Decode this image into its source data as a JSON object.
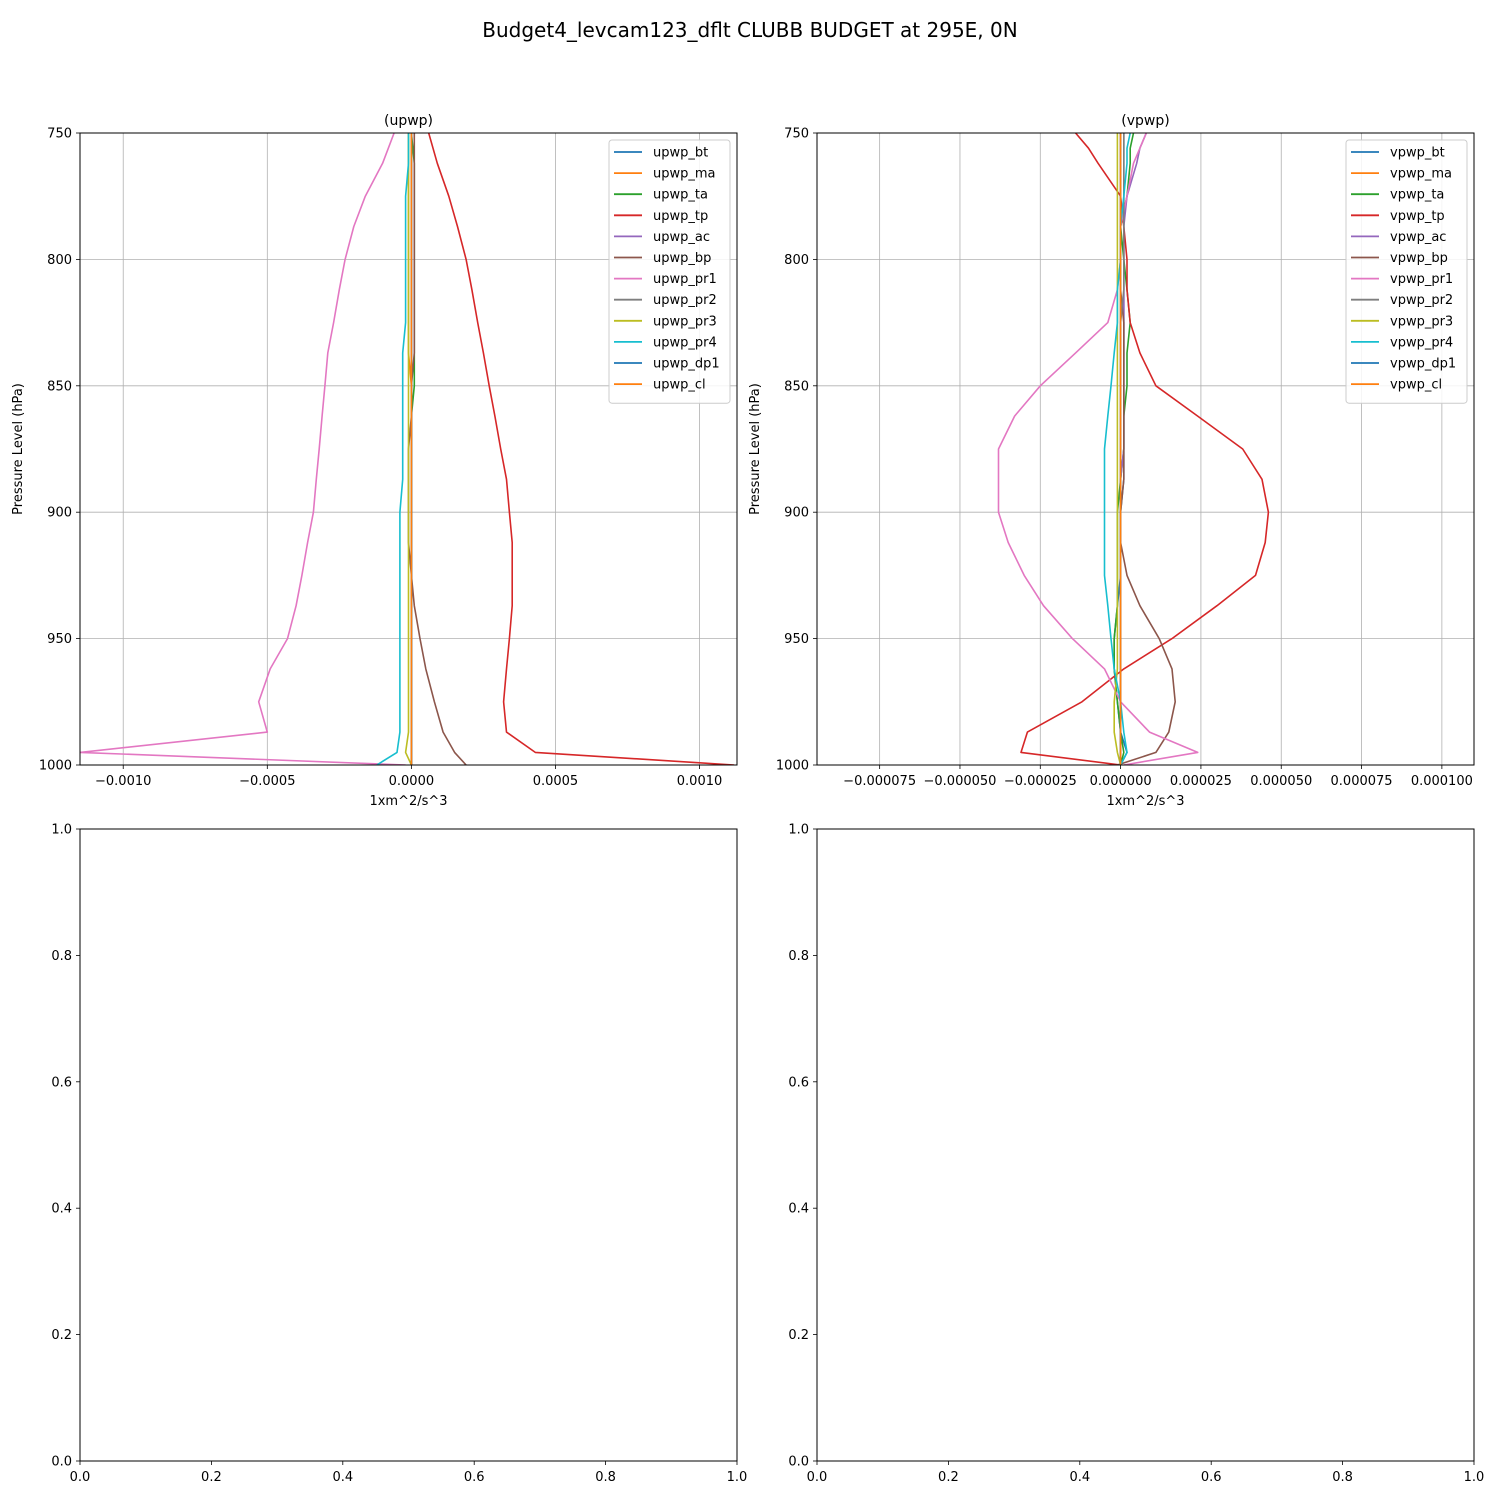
{
  "figure": {
    "suptitle": "Budget4_levcam123_dflt CLUBB BUDGET at 295E, 0N"
  },
  "chart_data": [
    {
      "type": "line",
      "title": "(upwp)",
      "xlabel": "1xm^2/s^3",
      "ylabel": "Pressure Level (hPa)",
      "xlim": [
        -0.00115,
        0.00113
      ],
      "ylim": [
        1000,
        750
      ],
      "yscale": "inverted",
      "xticks": [
        -0.001,
        -0.0005,
        0.0,
        0.0005,
        0.001
      ],
      "xtick_labels": [
        "−0.0010",
        "−0.0005",
        "0.0000",
        "0.0005",
        "0.0010"
      ],
      "yticks": [
        750,
        800,
        850,
        900,
        950,
        1000
      ],
      "ytick_labels": [
        "750",
        "800",
        "850",
        "900",
        "950",
        "1000"
      ],
      "grid": true,
      "legend": "upper right",
      "y": [
        750,
        762,
        775,
        787,
        800,
        812,
        825,
        837,
        850,
        862,
        875,
        887,
        900,
        912,
        925,
        937,
        950,
        962,
        975,
        987,
        995,
        1000
      ],
      "series": [
        {
          "name": "upwp_bt",
          "color": "#1f77b4",
          "values": [
            0.0,
            0.0,
            0.0,
            0.0,
            0.0,
            0.0,
            0.0,
            0.0,
            0.0,
            0.0,
            0.0,
            0.0,
            0.0,
            0.0,
            0.0,
            0.0,
            0.0,
            0.0,
            0.0,
            0.0,
            0.0,
            0.0
          ]
        },
        {
          "name": "upwp_ma",
          "color": "#ff7f0e",
          "values": [
            -1e-05,
            -1e-05,
            -1e-05,
            -1e-05,
            -1e-05,
            -1e-05,
            -1e-05,
            -1e-05,
            0.0,
            0.0,
            0.0,
            0.0,
            0.0,
            0.0,
            0.0,
            0.0,
            0.0,
            0.0,
            0.0,
            0.0,
            0.0,
            0.0
          ]
        },
        {
          "name": "upwp_ta",
          "color": "#2ca02c",
          "values": [
            0.0,
            1e-05,
            1e-05,
            1e-05,
            1e-05,
            1e-05,
            1e-05,
            1e-05,
            1e-05,
            0.0,
            0.0,
            0.0,
            0.0,
            0.0,
            0.0,
            0.0,
            0.0,
            0.0,
            0.0,
            0.0,
            0.0,
            0.0
          ]
        },
        {
          "name": "upwp_tp",
          "color": "#d62728",
          "values": [
            6e-05,
            9e-05,
            0.00013,
            0.00016,
            0.00019,
            0.00021,
            0.00023,
            0.00025,
            0.00027,
            0.00029,
            0.00031,
            0.00033,
            0.00034,
            0.00035,
            0.00035,
            0.00035,
            0.00034,
            0.00033,
            0.00032,
            0.00033,
            0.00043,
            0.00112
          ]
        },
        {
          "name": "upwp_ac",
          "color": "#9467bd",
          "values": [
            0.0,
            0.0,
            0.0,
            0.0,
            0.0,
            0.0,
            0.0,
            0.0,
            0.0,
            0.0,
            0.0,
            0.0,
            0.0,
            0.0,
            0.0,
            0.0,
            0.0,
            0.0,
            0.0,
            0.0,
            0.0,
            0.0
          ]
        },
        {
          "name": "upwp_bp",
          "color": "#8c564b",
          "values": [
            1e-05,
            1e-05,
            1e-05,
            1e-05,
            1e-05,
            1e-05,
            1e-05,
            1e-05,
            0.0,
            0.0,
            -1e-05,
            -1e-05,
            -1e-05,
            -1e-05,
            0.0,
            1e-05,
            3e-05,
            5e-05,
            8e-05,
            0.00011,
            0.00015,
            0.00019
          ]
        },
        {
          "name": "upwp_pr1",
          "color": "#e377c2",
          "values": [
            -6e-05,
            -0.0001,
            -0.00016,
            -0.0002,
            -0.00023,
            -0.00025,
            -0.00027,
            -0.00029,
            -0.0003,
            -0.00031,
            -0.00032,
            -0.00033,
            -0.00034,
            -0.00036,
            -0.00038,
            -0.0004,
            -0.00043,
            -0.00049,
            -0.00053,
            -0.0005,
            -0.00115,
            -2e-05
          ]
        },
        {
          "name": "upwp_pr2",
          "color": "#7f7f7f",
          "values": [
            0.0,
            0.0,
            0.0,
            0.0,
            0.0,
            0.0,
            0.0,
            0.0,
            0.0,
            0.0,
            0.0,
            0.0,
            0.0,
            0.0,
            0.0,
            0.0,
            0.0,
            0.0,
            0.0,
            0.0,
            0.0,
            0.0
          ]
        },
        {
          "name": "upwp_pr3",
          "color": "#bcbd22",
          "values": [
            -1e-05,
            -1e-05,
            -1e-05,
            -1e-05,
            -1e-05,
            -1e-05,
            -1e-05,
            -1e-05,
            -1e-05,
            -1e-05,
            -1e-05,
            -1e-05,
            -1e-05,
            -1e-05,
            -1e-05,
            -1e-05,
            -1e-05,
            -1e-05,
            -1e-05,
            -1e-05,
            -2e-05,
            0.0
          ]
        },
        {
          "name": "upwp_pr4",
          "color": "#17becf",
          "values": [
            -1e-05,
            -1e-05,
            -2e-05,
            -2e-05,
            -2e-05,
            -2e-05,
            -2e-05,
            -3e-05,
            -3e-05,
            -3e-05,
            -3e-05,
            -3e-05,
            -4e-05,
            -4e-05,
            -4e-05,
            -4e-05,
            -4e-05,
            -4e-05,
            -4e-05,
            -4e-05,
            -5e-05,
            -0.00012
          ]
        },
        {
          "name": "upwp_dp1",
          "color": "#1f77b4",
          "values": [
            0.0,
            0.0,
            0.0,
            0.0,
            0.0,
            0.0,
            0.0,
            0.0,
            0.0,
            0.0,
            0.0,
            0.0,
            0.0,
            0.0,
            0.0,
            0.0,
            0.0,
            0.0,
            0.0,
            0.0,
            0.0,
            0.0
          ]
        },
        {
          "name": "upwp_cl",
          "color": "#ff7f0e",
          "values": [
            0.0,
            0.0,
            0.0,
            0.0,
            0.0,
            0.0,
            0.0,
            0.0,
            0.0,
            0.0,
            0.0,
            0.0,
            0.0,
            0.0,
            0.0,
            0.0,
            0.0,
            0.0,
            0.0,
            0.0,
            0.0,
            0.0
          ]
        }
      ]
    },
    {
      "type": "line",
      "title": "(vpwp)",
      "xlabel": "1xm^2/s^3",
      "ylabel": "Pressure Level (hPa)",
      "xlim": [
        -9.45e-05,
        0.00011
      ],
      "ylim": [
        1000,
        750
      ],
      "yscale": "inverted",
      "xticks": [
        -7.5e-05,
        -5e-05,
        -2.5e-05,
        0.0,
        2.5e-05,
        5e-05,
        7.5e-05,
        0.0001
      ],
      "xtick_labels": [
        "−0.000075",
        "−0.000050",
        "−0.000025",
        "0.000000",
        "0.000025",
        "0.000050",
        "0.000075",
        "0.000100"
      ],
      "yticks": [
        750,
        800,
        850,
        900,
        950,
        1000
      ],
      "ytick_labels": [
        "750",
        "800",
        "850",
        "900",
        "950",
        "1000"
      ],
      "grid": true,
      "legend": "upper right",
      "y": [
        750,
        756,
        762,
        775,
        787,
        800,
        812,
        825,
        837,
        850,
        862,
        875,
        887,
        900,
        912,
        925,
        937,
        950,
        962,
        975,
        987,
        995,
        1000
      ],
      "series": [
        {
          "name": "vpwp_bt",
          "color": "#1f77b4",
          "values": [
            1e-06,
            1e-06,
            1e-06,
            1e-06,
            1e-06,
            1e-06,
            1e-06,
            1e-06,
            1e-06,
            1e-06,
            1e-06,
            1e-06,
            1e-06,
            0.0,
            0.0,
            0.0,
            -1e-06,
            -2e-06,
            -2e-06,
            -1e-06,
            0.0,
            2e-06,
            0.0
          ]
        },
        {
          "name": "vpwp_ma",
          "color": "#ff7f0e",
          "values": [
            0.0,
            0.0,
            0.0,
            0.0,
            0.0,
            0.0,
            0.0,
            0.0,
            0.0,
            0.0,
            0.0,
            0.0,
            0.0,
            0.0,
            0.0,
            0.0,
            0.0,
            0.0,
            0.0,
            0.0,
            0.0,
            0.0,
            0.0
          ]
        },
        {
          "name": "vpwp_ta",
          "color": "#2ca02c",
          "values": [
            4e-06,
            3e-06,
            3e-06,
            2e-06,
            0.0,
            1e-06,
            2e-06,
            3e-06,
            2e-06,
            2e-06,
            1e-06,
            1e-06,
            0.0,
            -1e-06,
            -1e-06,
            -1e-06,
            -1e-06,
            -2e-06,
            -2e-06,
            -1e-06,
            0.0,
            1e-06,
            0.0
          ]
        },
        {
          "name": "vpwp_tp",
          "color": "#d62728",
          "values": [
            -1.4e-05,
            -1e-05,
            -7e-06,
            0.0,
            1e-06,
            2e-06,
            2e-06,
            3e-06,
            6e-06,
            1.1e-05,
            2.4e-05,
            3.8e-05,
            4.4e-05,
            4.6e-05,
            4.5e-05,
            4.2e-05,
            3e-05,
            1.6e-05,
            1e-06,
            -1.2e-05,
            -2.9e-05,
            -3.1e-05,
            0.0
          ]
        },
        {
          "name": "vpwp_ac",
          "color": "#9467bd",
          "values": [
            8e-06,
            6e-06,
            5e-06,
            2e-06,
            1e-06,
            1e-06,
            1e-06,
            1e-06,
            1e-06,
            1e-06,
            1e-06,
            1e-06,
            0.0,
            0.0,
            0.0,
            0.0,
            0.0,
            0.0,
            0.0,
            0.0,
            0.0,
            0.0,
            0.0
          ]
        },
        {
          "name": "vpwp_bp",
          "color": "#8c564b",
          "values": [
            0.0,
            0.0,
            0.0,
            0.0,
            0.0,
            0.0,
            0.0,
            1e-06,
            1e-06,
            1e-06,
            1e-06,
            1e-06,
            1e-06,
            0.0,
            0.0,
            2e-06,
            6e-06,
            1.2e-05,
            1.6e-05,
            1.7e-05,
            1.5e-05,
            1.1e-05,
            -1e-06
          ]
        },
        {
          "name": "vpwp_pr1",
          "color": "#e377c2",
          "values": [
            8e-06,
            6e-06,
            4e-06,
            2e-06,
            0.0,
            0.0,
            -1e-06,
            -4e-06,
            -1.4e-05,
            -2.5e-05,
            -3.3e-05,
            -3.8e-05,
            -3.8e-05,
            -3.8e-05,
            -3.5e-05,
            -3e-05,
            -2.4e-05,
            -1.5e-05,
            -5e-06,
            0.0,
            9e-06,
            2.4e-05,
            1e-06
          ]
        },
        {
          "name": "vpwp_pr2",
          "color": "#7f7f7f",
          "values": [
            1e-06,
            1e-06,
            1e-06,
            1e-06,
            1e-06,
            1e-06,
            1e-06,
            0.0,
            0.0,
            0.0,
            0.0,
            0.0,
            0.0,
            0.0,
            0.0,
            0.0,
            0.0,
            0.0,
            0.0,
            0.0,
            0.0,
            0.0,
            0.0
          ]
        },
        {
          "name": "vpwp_pr3",
          "color": "#bcbd22",
          "values": [
            -1e-06,
            -1e-06,
            -1e-06,
            -1e-06,
            -1e-06,
            -1e-06,
            -1e-06,
            -1e-06,
            -1e-06,
            -1e-06,
            -1e-06,
            -1e-06,
            -1e-06,
            -1e-06,
            -1e-06,
            -1e-06,
            -1e-06,
            -1e-06,
            -1e-06,
            -2e-06,
            -2e-06,
            -1e-06,
            0.0
          ]
        },
        {
          "name": "vpwp_pr4",
          "color": "#17becf",
          "values": [
            3e-06,
            2e-06,
            2e-06,
            1e-06,
            0.0,
            0.0,
            -1e-06,
            -1e-06,
            -2e-06,
            -3e-06,
            -4e-06,
            -5e-06,
            -5e-06,
            -5e-06,
            -5e-06,
            -5e-06,
            -4e-06,
            -3e-06,
            -2e-06,
            0.0,
            1e-06,
            2e-06,
            0.0
          ]
        },
        {
          "name": "vpwp_dp1",
          "color": "#1f77b4",
          "values": [
            0.0,
            0.0,
            0.0,
            0.0,
            0.0,
            0.0,
            0.0,
            0.0,
            0.0,
            0.0,
            0.0,
            0.0,
            0.0,
            0.0,
            0.0,
            0.0,
            0.0,
            0.0,
            0.0,
            0.0,
            0.0,
            0.0,
            0.0
          ]
        },
        {
          "name": "vpwp_cl",
          "color": "#ff7f0e",
          "values": [
            0.0,
            0.0,
            0.0,
            0.0,
            0.0,
            0.0,
            0.0,
            0.0,
            0.0,
            0.0,
            0.0,
            0.0,
            0.0,
            0.0,
            0.0,
            0.0,
            0.0,
            0.0,
            0.0,
            0.0,
            0.0,
            0.0,
            0.0
          ]
        }
      ]
    },
    {
      "type": "line",
      "title": "",
      "xlabel": "",
      "ylabel": "",
      "xlim": [
        0,
        1
      ],
      "ylim": [
        0,
        1
      ],
      "xticks": [
        0,
        0.2,
        0.4,
        0.6,
        0.8,
        1.0
      ],
      "xtick_labels": [
        "0.0",
        "0.2",
        "0.4",
        "0.6",
        "0.8",
        "1.0"
      ],
      "yticks": [
        0,
        0.2,
        0.4,
        0.6,
        0.8,
        1.0
      ],
      "ytick_labels": [
        "0.0",
        "0.2",
        "0.4",
        "0.6",
        "0.8",
        "1.0"
      ],
      "grid": false,
      "series": []
    },
    {
      "type": "line",
      "title": "",
      "xlabel": "",
      "ylabel": "",
      "xlim": [
        0,
        1
      ],
      "ylim": [
        0,
        1
      ],
      "xticks": [
        0,
        0.2,
        0.4,
        0.6,
        0.8,
        1.0
      ],
      "xtick_labels": [
        "0.0",
        "0.2",
        "0.4",
        "0.6",
        "0.8",
        "1.0"
      ],
      "yticks": [
        0,
        0.2,
        0.4,
        0.6,
        0.8,
        1.0
      ],
      "ytick_labels": [
        "0.0",
        "0.2",
        "0.4",
        "0.6",
        "0.8",
        "1.0"
      ],
      "grid": false,
      "series": []
    }
  ]
}
